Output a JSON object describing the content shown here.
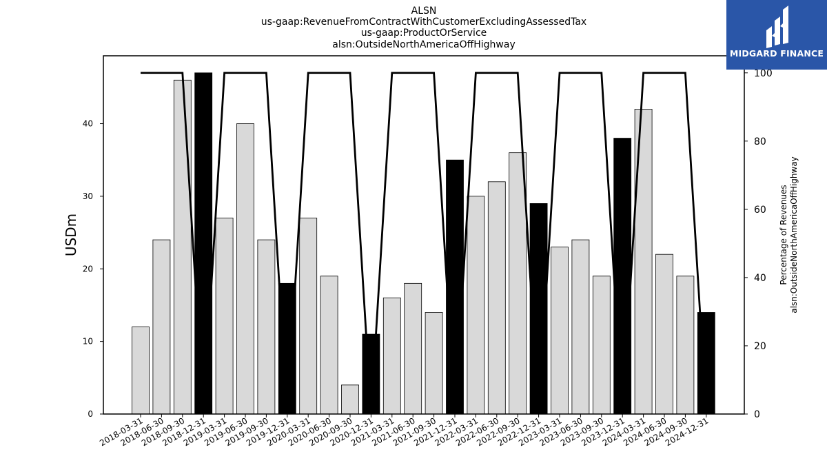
{
  "title_lines": [
    "ALSN",
    "us-gaap:RevenueFromContractWithCustomerExcludingAssessedTax",
    "us-gaap:ProductOrService",
    "alsn:OutsideNorthAmericaOffHighway"
  ],
  "logo": {
    "text": "MIDGARD FINANCE",
    "bg_color": "#2a56a8"
  },
  "chart_data": {
    "type": "bar",
    "categories": [
      "2018-03-31",
      "2018-06-30",
      "2018-09-30",
      "2018-12-31",
      "2019-03-31",
      "2019-06-30",
      "2019-09-30",
      "2019-12-31",
      "2020-03-31",
      "2020-06-30",
      "2020-09-30",
      "2020-12-31",
      "2021-03-31",
      "2021-06-30",
      "2021-09-30",
      "2021-12-31",
      "2022-03-31",
      "2022-06-30",
      "2022-09-30",
      "2022-12-31",
      "2023-03-31",
      "2023-06-30",
      "2023-09-30",
      "2023-12-31",
      "2024-03-31",
      "2024-06-30",
      "2024-09-30",
      "2024-12-31"
    ],
    "series": [
      {
        "axis": "left",
        "values": [
          12,
          24,
          46,
          47,
          27,
          40,
          24,
          18,
          27,
          19,
          4,
          11,
          16,
          18,
          14,
          35,
          30,
          32,
          36,
          29,
          23,
          24,
          19,
          38,
          42,
          22,
          19,
          14
        ],
        "highlight": [
          false,
          false,
          false,
          true,
          false,
          false,
          false,
          true,
          false,
          false,
          false,
          true,
          false,
          false,
          false,
          true,
          false,
          false,
          false,
          true,
          false,
          false,
          false,
          true,
          false,
          false,
          false,
          true
        ],
        "bar_color": "#d9d9d9",
        "highlight_color": "#000000"
      },
      {
        "axis": "right",
        "type": "line",
        "values": [
          100,
          100,
          100,
          null,
          100,
          100,
          100,
          null,
          100,
          100,
          100,
          null,
          100,
          100,
          100,
          null,
          100,
          100,
          100,
          null,
          100,
          100,
          100,
          null,
          100,
          100,
          100,
          null
        ],
        "line_color": "#000000"
      }
    ],
    "ylabel": "USDm",
    "ylabel_right": [
      "Percentage of Revenues",
      "alsn:OutsideNorthAmericaOffHighway"
    ],
    "ylim": [
      0,
      49.35
    ],
    "ylim_right": [
      0,
      105
    ],
    "yticks": [
      0,
      10,
      20,
      30,
      40
    ],
    "yticks_right": [
      0,
      20,
      40,
      60,
      80,
      100
    ],
    "grid": false
  }
}
